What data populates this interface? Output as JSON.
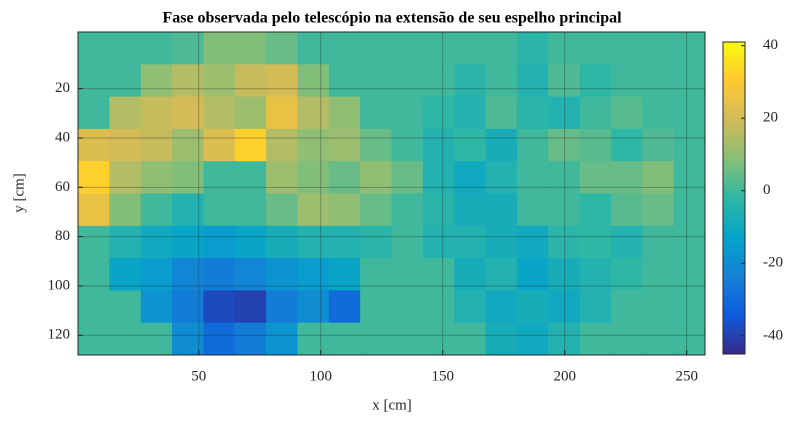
{
  "chart_data": {
    "type": "heatmap",
    "title": "Fase observada pelo telescópio na extensão de seu espelho principal",
    "x_label": "x [cm]",
    "y_label": "y [cm]",
    "xlim": [
      0.5,
      257.5
    ],
    "xticks": [
      50,
      100,
      150,
      200,
      250
    ],
    "ylim": [
      -3,
      128
    ],
    "yticks": [
      20,
      40,
      60,
      80,
      100,
      120
    ],
    "y_reversed": true,
    "grid": true,
    "clim": [
      -45,
      41
    ],
    "cticks": [
      -40,
      -20,
      0,
      20,
      40
    ],
    "colormap": [
      "#352a87",
      "#0f5cdd",
      "#1481d6",
      "#06a4ca",
      "#2eb7a4",
      "#87bf77",
      "#d1bb59",
      "#fec832",
      "#f9fb0e"
    ],
    "z": [
      [
        0,
        0,
        0,
        2,
        8,
        8,
        5,
        0,
        0,
        0,
        0,
        0,
        0,
        0,
        -3,
        0,
        0,
        0,
        0,
        0
      ],
      [
        0,
        0,
        10,
        15,
        12,
        18,
        20,
        8,
        0,
        0,
        0,
        0,
        -3,
        0,
        -5,
        2,
        -2,
        0,
        0,
        0
      ],
      [
        0,
        15,
        18,
        20,
        15,
        12,
        25,
        15,
        10,
        0,
        0,
        -2,
        -5,
        2,
        -3,
        -5,
        0,
        3,
        0,
        0
      ],
      [
        22,
        20,
        18,
        12,
        22,
        32,
        15,
        10,
        12,
        5,
        0,
        -5,
        -2,
        -8,
        0,
        5,
        3,
        -2,
        2,
        0
      ],
      [
        32,
        15,
        10,
        8,
        0,
        0,
        12,
        8,
        5,
        10,
        5,
        -5,
        -10,
        -5,
        0,
        0,
        5,
        5,
        8,
        0
      ],
      [
        25,
        8,
        0,
        -5,
        0,
        0,
        5,
        12,
        10,
        5,
        0,
        -3,
        -8,
        -8,
        0,
        0,
        -2,
        3,
        5,
        0
      ],
      [
        0,
        -5,
        -10,
        -12,
        -15,
        -12,
        -8,
        -5,
        -5,
        -3,
        0,
        -5,
        -5,
        -8,
        -10,
        -3,
        -2,
        -5,
        0,
        0
      ],
      [
        0,
        -12,
        -15,
        -22,
        -25,
        -22,
        -18,
        -15,
        -12,
        0,
        0,
        0,
        -8,
        -5,
        -12,
        -8,
        -5,
        -2,
        0,
        0
      ],
      [
        0,
        0,
        -18,
        -25,
        -38,
        -40,
        -25,
        -20,
        -30,
        0,
        0,
        0,
        -5,
        -10,
        -8,
        -10,
        -5,
        0,
        0,
        0
      ],
      [
        0,
        0,
        0,
        -20,
        -30,
        -25,
        -18,
        0,
        0,
        0,
        0,
        0,
        0,
        -8,
        -10,
        -5,
        0,
        0,
        0,
        0
      ]
    ]
  }
}
